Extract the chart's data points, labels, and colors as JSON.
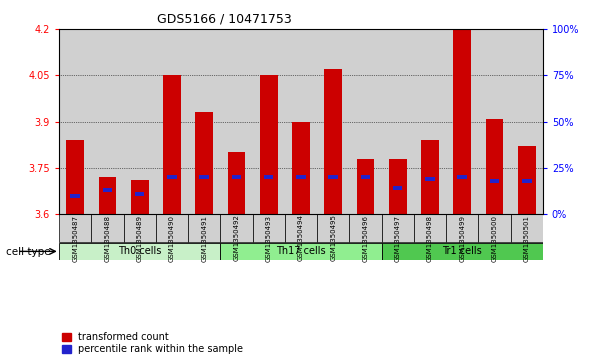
{
  "title": "GDS5166 / 10471753",
  "samples": [
    "GSM1350487",
    "GSM1350488",
    "GSM1350489",
    "GSM1350490",
    "GSM1350491",
    "GSM1350492",
    "GSM1350493",
    "GSM1350494",
    "GSM1350495",
    "GSM1350496",
    "GSM1350497",
    "GSM1350498",
    "GSM1350499",
    "GSM1350500",
    "GSM1350501"
  ],
  "red_values": [
    3.84,
    3.72,
    3.71,
    4.05,
    3.93,
    3.8,
    4.05,
    3.9,
    4.07,
    3.78,
    3.78,
    3.84,
    4.2,
    3.91,
    3.82
  ],
  "blue_pct": [
    10,
    13,
    11,
    20,
    20,
    20,
    20,
    20,
    20,
    20,
    14,
    19,
    20,
    18,
    18
  ],
  "cell_types": [
    {
      "label": "Th0 cells",
      "start": 0,
      "end": 5,
      "color": "#c8f0c8"
    },
    {
      "label": "Th17 cells",
      "start": 5,
      "end": 10,
      "color": "#90ee90"
    },
    {
      "label": "Tr1 cells",
      "start": 10,
      "end": 15,
      "color": "#50c850"
    }
  ],
  "ymin": 3.6,
  "ymax": 4.2,
  "yticks_left": [
    3.6,
    3.75,
    3.9,
    4.05,
    4.2
  ],
  "yticks_right_pct": [
    0,
    25,
    50,
    75,
    100
  ],
  "bar_color": "#cc0000",
  "blue_color": "#2222cc",
  "bg_color": "#d0d0d0",
  "bar_width": 0.55,
  "blue_bar_width": 0.3,
  "blue_bar_height": 0.012,
  "title_fontsize": 9,
  "tick_fontsize": 7,
  "sample_fontsize": 5,
  "cell_type_fontsize": 7,
  "legend_fontsize": 7
}
